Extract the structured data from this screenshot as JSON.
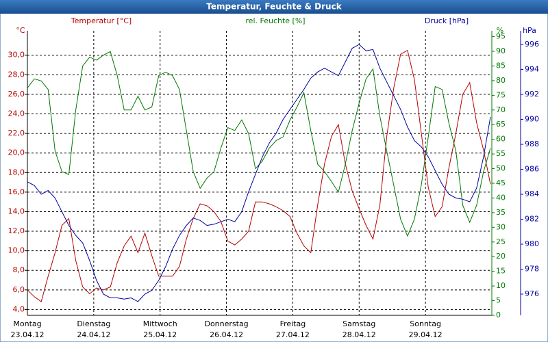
{
  "chart_data": {
    "type": "line",
    "title": "Temperatur, Feuchte & Druck",
    "y_label_top": "°C",
    "y2_label_top": "%",
    "y3_label_top": "hPa",
    "xlim": [
      0,
      168
    ],
    "xticks": [
      {
        "value": 0,
        "label": "Montag",
        "date": "23.04.12"
      },
      {
        "value": 24,
        "label": "Dienstag",
        "date": "24.04.12"
      },
      {
        "value": 48,
        "label": "Mittwoch",
        "date": "25.04.12"
      },
      {
        "value": 72,
        "label": "Donnerstag",
        "date": "26.04.12"
      },
      {
        "value": 96,
        "label": "Freitag",
        "date": "27.04.12"
      },
      {
        "value": 120,
        "label": "Samstag",
        "date": "28.04.12"
      },
      {
        "value": 144,
        "label": "Sonntag",
        "date": "29.04.12"
      }
    ],
    "ylim": [
      3.4,
      32.5
    ],
    "yticks": [
      {
        "value": 4,
        "label": "4,0"
      },
      {
        "value": 6,
        "label": "6,0"
      },
      {
        "value": 8,
        "label": "8,0"
      },
      {
        "value": 10,
        "label": "10,0"
      },
      {
        "value": 12,
        "label": "12,0"
      },
      {
        "value": 14,
        "label": "14,0"
      },
      {
        "value": 16,
        "label": "16,0"
      },
      {
        "value": 18,
        "label": "18,0"
      },
      {
        "value": 20,
        "label": "20,0"
      },
      {
        "value": 22,
        "label": "22,0"
      },
      {
        "value": 24,
        "label": "24,0"
      },
      {
        "value": 26,
        "label": "26,0"
      },
      {
        "value": 28,
        "label": "28,0"
      },
      {
        "value": 30,
        "label": "30,0"
      }
    ],
    "y2lim": [
      0,
      97
    ],
    "y2ticks": [
      0,
      5,
      10,
      15,
      20,
      25,
      30,
      35,
      40,
      45,
      50,
      55,
      60,
      65,
      70,
      75,
      80,
      85,
      90,
      95
    ],
    "y3lim": [
      974.3,
      997.1
    ],
    "y3ticks": [
      976,
      978,
      980,
      982,
      984,
      986,
      988,
      990,
      992,
      994,
      996
    ],
    "grid": true,
    "x": [
      0,
      2.5,
      5,
      7.5,
      10,
      12.5,
      15,
      17.5,
      20,
      22.5,
      25,
      27.5,
      30,
      32.5,
      35,
      37.5,
      40,
      42.5,
      45,
      47.5,
      50,
      52.5,
      55,
      57.5,
      60,
      62.5,
      65,
      67.5,
      70,
      72.5,
      75,
      77.5,
      80,
      82.5,
      85,
      87.5,
      90,
      92.5,
      95,
      97.5,
      100,
      102.5,
      105,
      107.5,
      110,
      112.5,
      115,
      117.5,
      120,
      122.5,
      125,
      127.5,
      130,
      132.5,
      135,
      137.5,
      140,
      142.5,
      145,
      147.5,
      150,
      152.5,
      155,
      157.5,
      160,
      162.5,
      165,
      167.5
    ],
    "series": [
      {
        "name": "Temperatur [°C]",
        "color": "#b40000",
        "axis": "y",
        "values": [
          6.0,
          5.3,
          4.8,
          7.4,
          9.8,
          12.6,
          13.3,
          9.0,
          6.3,
          5.6,
          6.2,
          6.0,
          6.3,
          8.8,
          10.5,
          11.5,
          9.8,
          11.8,
          9.5,
          7.4,
          7.4,
          7.4,
          8.4,
          11.2,
          13.3,
          14.8,
          14.6,
          14.0,
          13.0,
          11.0,
          10.6,
          11.2,
          12.0,
          15.0,
          15.0,
          14.8,
          14.5,
          14.1,
          13.5,
          11.8,
          10.5,
          9.8,
          14.7,
          18.9,
          21.7,
          22.9,
          18.9,
          16.1,
          14.3,
          12.6,
          11.2,
          14.7,
          21.7,
          26.6,
          30.1,
          30.5,
          27.5,
          22.0,
          16.5,
          13.5,
          14.5,
          18.5,
          22.0,
          26.0,
          27.2,
          23.1,
          20.3,
          16.8
        ]
      },
      {
        "name": "rel. Feuchte [%]",
        "color": "#007800",
        "axis": "y2",
        "values": [
          77.5,
          80.6,
          79.9,
          77,
          56,
          49,
          48,
          70,
          85,
          88,
          87,
          88.7,
          89.9,
          81.7,
          70,
          70,
          74.7,
          70,
          71,
          81.7,
          82.9,
          81.7,
          77,
          63,
          49,
          43.3,
          46.8,
          49,
          57,
          64,
          63,
          66.6,
          62,
          50,
          52.6,
          57,
          59.6,
          60.8,
          66.6,
          71,
          75.9,
          63,
          51.5,
          49,
          45.6,
          42,
          51.5,
          63,
          72.4,
          80.6,
          84,
          67.8,
          56,
          44.5,
          32.8,
          27,
          32.8,
          44.5,
          60.8,
          78,
          77,
          65.4,
          56,
          37.5,
          31.7,
          37.5,
          49,
          57
        ]
      },
      {
        "name": "Druck [hPa]",
        "color": "#0000a0",
        "axis": "y3",
        "values": [
          985.0,
          984.7,
          984.0,
          984.3,
          983.7,
          982.6,
          981.5,
          980.7,
          980.1,
          978.7,
          977.1,
          976.0,
          975.7,
          975.7,
          975.6,
          975.7,
          975.4,
          976.0,
          976.3,
          977.1,
          978.2,
          979.6,
          980.7,
          981.5,
          982.1,
          981.9,
          981.5,
          981.6,
          981.8,
          982.0,
          981.8,
          982.6,
          984.2,
          985.6,
          987.0,
          988.1,
          988.9,
          990.0,
          990.8,
          991.6,
          992.4,
          993.3,
          993.8,
          994.1,
          993.8,
          993.5,
          994.6,
          995.7,
          996.0,
          995.5,
          995.6,
          994.1,
          993.0,
          991.9,
          990.8,
          989.4,
          988.3,
          987.8,
          987.0,
          985.9,
          984.8,
          984.0,
          983.7,
          983.6,
          983.4,
          984.5,
          987.0,
          990.2
        ]
      }
    ]
  }
}
